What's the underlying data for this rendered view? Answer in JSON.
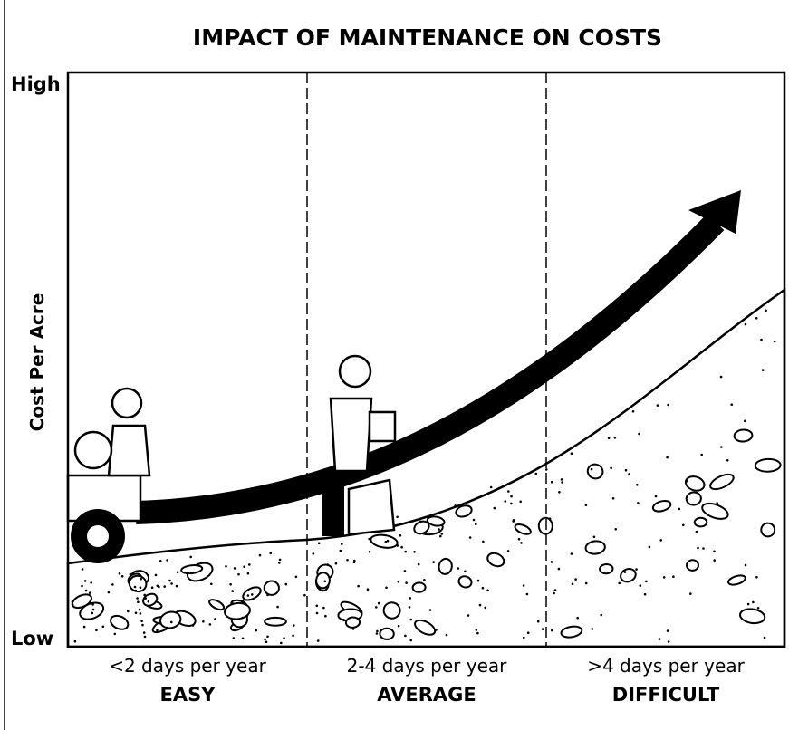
{
  "title": "IMPACT OF MAINTENANCE ON COSTS",
  "y_axis": {
    "label": "Cost Per Acre",
    "high": "High",
    "low": "Low"
  },
  "columns": [
    {
      "range": "<2 days per year",
      "level": "EASY"
    },
    {
      "range": "2-4 days per year",
      "level": "AVERAGE"
    },
    {
      "range": ">4 days per year",
      "level": "DIFFICULT"
    }
  ]
}
